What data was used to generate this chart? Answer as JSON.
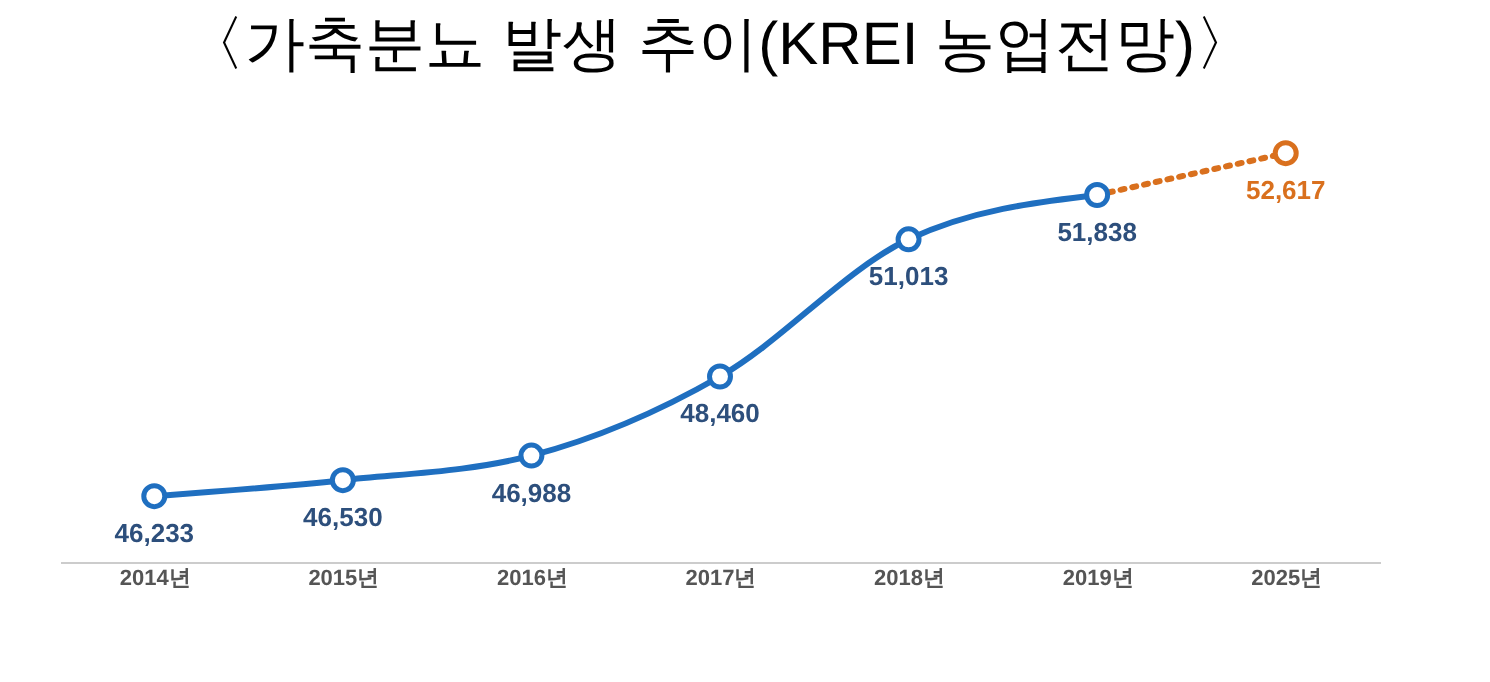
{
  "chart_data": {
    "type": "line",
    "title": "〈가축분뇨 발생 추이(KREI 농업전망)〉",
    "categories": [
      "2014년",
      "2015년",
      "2016년",
      "2017년",
      "2018년",
      "2019년",
      "2025년"
    ],
    "marker": "circle",
    "series": [
      {
        "color": "#1f6fc0",
        "line_style": "solid",
        "values": [
          46233,
          46530,
          46988,
          48460,
          51013,
          51838,
          null
        ],
        "value_labels": [
          "46,233",
          "46,530",
          "46,988",
          "48,460",
          "51,013",
          "51,838",
          null
        ]
      },
      {
        "color": "#d9701e",
        "line_style": "dotted",
        "values": [
          null,
          null,
          null,
          null,
          null,
          51838,
          52617
        ],
        "value_labels": [
          null,
          null,
          null,
          null,
          null,
          null,
          "52,617"
        ]
      }
    ]
  }
}
